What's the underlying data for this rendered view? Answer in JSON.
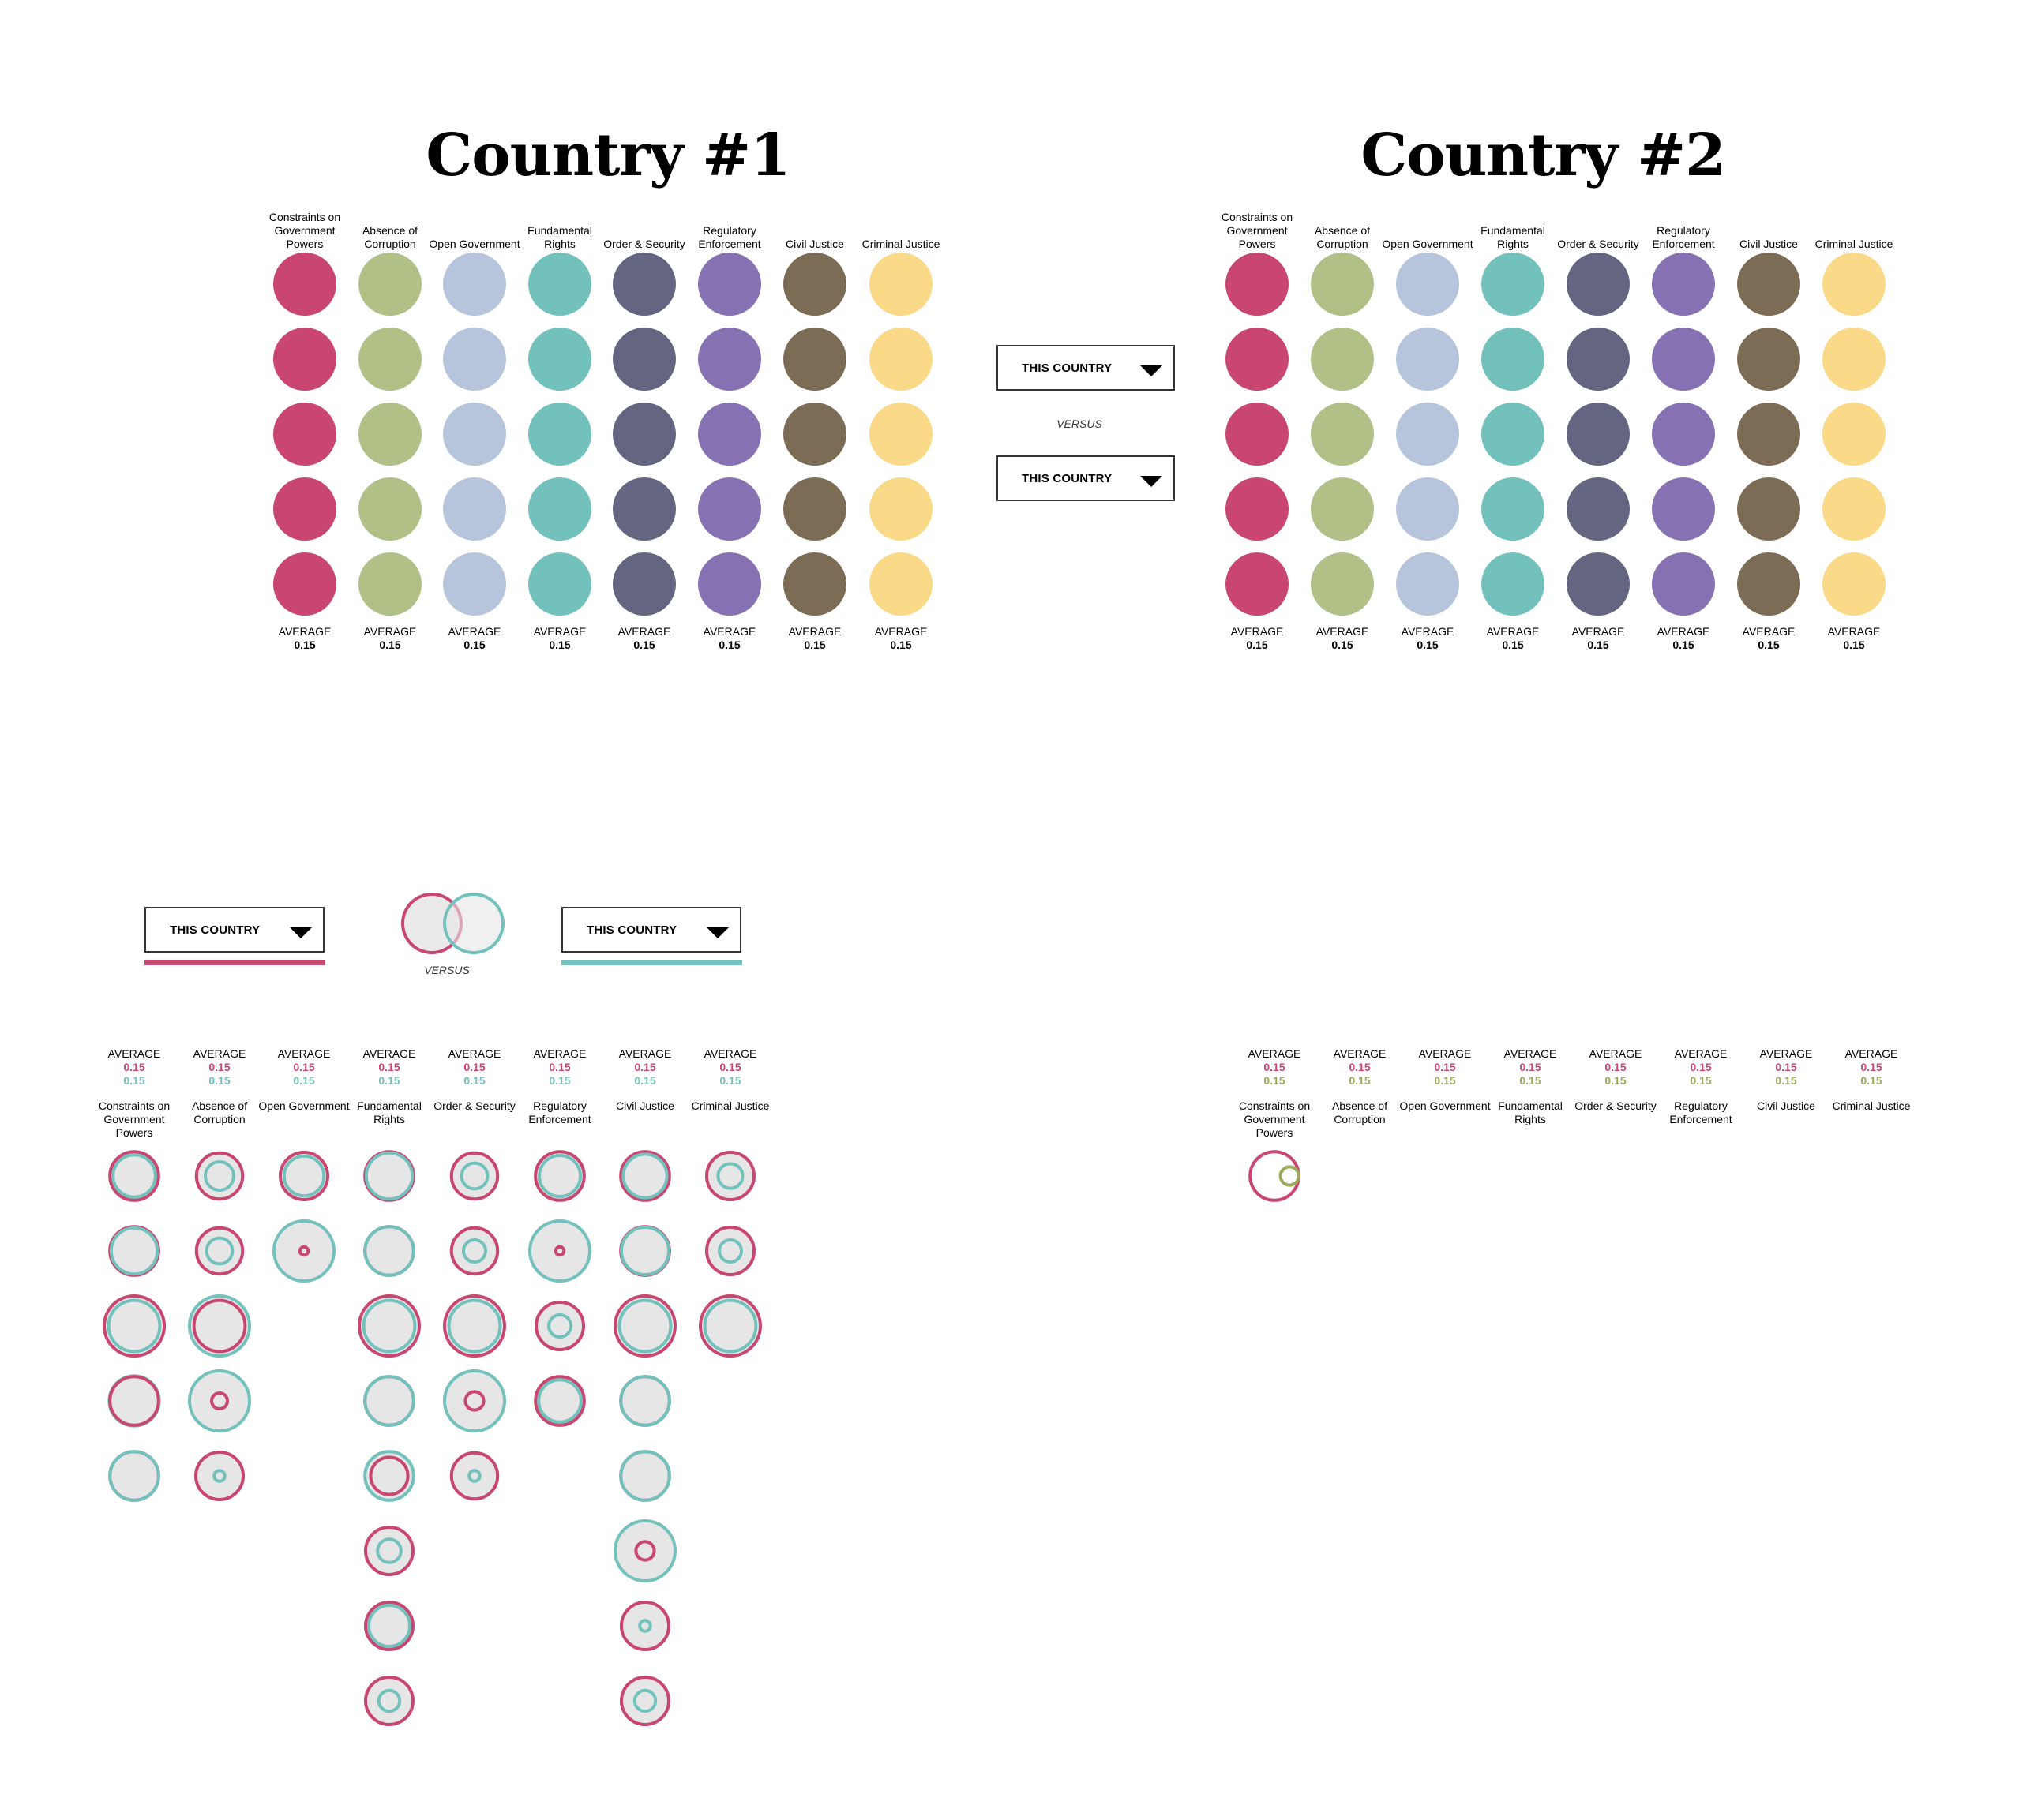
{
  "colors": {
    "categories": [
      "#c8466f",
      "#b0c087",
      "#b6c4dc",
      "#73c1bd",
      "#646580",
      "#8672b2",
      "#7c6b55",
      "#fad988"
    ],
    "country_a": "#c8466f",
    "country_b": "#73c1bd",
    "country_b_alt": "#9aa85a",
    "bubble_fill": "#e6e6e6"
  },
  "categories": [
    "Constraints on Government Powers",
    "Absence of Corruption",
    "Open Government",
    "Fundamental Rights",
    "Order & Security",
    "Regulatory Enforcement",
    "Civil Justice",
    "Criminal Justice"
  ],
  "country1": {
    "title": "Country #1",
    "average_label": "AVERAGE",
    "average_value": "0.15",
    "rows": 5
  },
  "country2": {
    "title": "Country #2",
    "average_label": "AVERAGE",
    "average_value": "0.15",
    "rows": 5
  },
  "selectors": {
    "top_a": "THIS COUNTRY",
    "top_b": "THIS COUNTRY",
    "top_versus": "VERSUS",
    "bottom_a": "THIS COUNTRY",
    "bottom_b": "THIS COUNTRY",
    "bottom_versus": "VERSUS",
    "caret_icon": "triangle-down-icon"
  },
  "comparison": {
    "average_label": "AVERAGE",
    "value_a": "0.15",
    "value_b": "0.15",
    "bubbles": [
      [
        [
          0.82,
          0.72
        ],
        [
          0.82,
          0.78
        ],
        [
          1.0,
          0.86
        ],
        [
          0.82,
          0.84
        ],
        [
          0.82,
          0.82
        ]
      ],
      [
        [
          0.78,
          0.5
        ],
        [
          0.78,
          0.46
        ],
        [
          0.86,
          1.0
        ],
        [
          0.3,
          1.0
        ],
        [
          0.8,
          0.22
        ]
      ],
      [
        [
          0.8,
          0.68
        ],
        [
          0.18,
          1.0
        ]
      ],
      [
        [
          0.82,
          0.78
        ],
        [
          0.82,
          0.82
        ],
        [
          1.0,
          0.86
        ],
        [
          0.82,
          0.82
        ],
        [
          0.64,
          0.82
        ],
        [
          0.8,
          0.42
        ],
        [
          0.8,
          0.7
        ],
        [
          0.8,
          0.38
        ]
      ],
      [
        [
          0.78,
          0.46
        ],
        [
          0.78,
          0.4
        ],
        [
          1.0,
          0.86
        ],
        [
          0.34,
          1.0
        ],
        [
          0.78,
          0.22
        ]
      ],
      [
        [
          0.82,
          0.7
        ],
        [
          0.18,
          1.0
        ],
        [
          0.8,
          0.4
        ],
        [
          0.82,
          0.72
        ]
      ],
      [
        [
          0.82,
          0.74
        ],
        [
          0.82,
          0.8
        ],
        [
          1.0,
          0.86
        ],
        [
          0.82,
          0.82
        ],
        [
          0.82,
          0.82
        ],
        [
          0.34,
          1.0
        ],
        [
          0.8,
          0.22
        ],
        [
          0.8,
          0.38
        ]
      ],
      [
        [
          0.8,
          0.44
        ],
        [
          0.8,
          0.4
        ],
        [
          1.0,
          0.86
        ]
      ]
    ]
  },
  "comparison2": {
    "average_label": "AVERAGE",
    "value_a": "0.15",
    "value_b": "0.15",
    "bubbles": [
      [
        [
          0.82,
          0.34
        ]
      ]
    ]
  }
}
